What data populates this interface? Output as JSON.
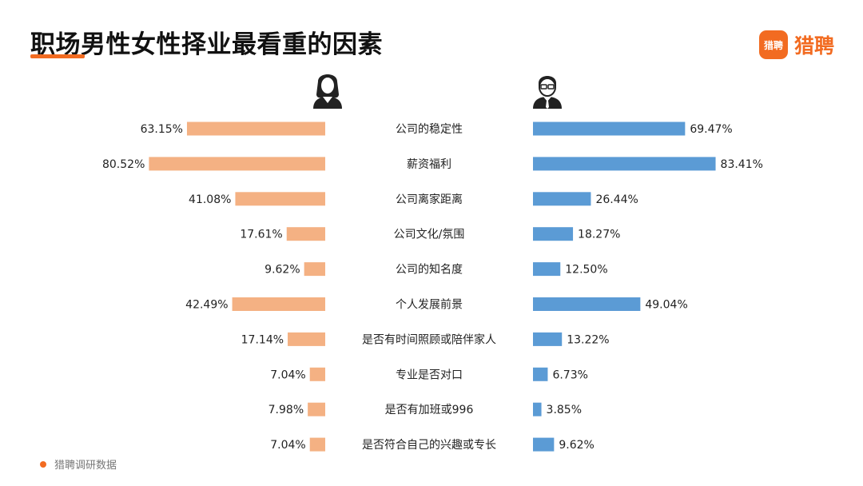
{
  "header": {
    "title": "职场男性女性择业最看重的因素",
    "brand": "猎聘",
    "brand_mark": "猎聘"
  },
  "footer": {
    "source": "猎聘调研数据"
  },
  "colors": {
    "female": "#f4b183",
    "male": "#5b9bd5",
    "accent": "#f26b21"
  },
  "icons": {
    "female": "woman-icon",
    "male": "man-icon"
  },
  "chart_data": {
    "type": "bar",
    "orientation": "horizontal-butterfly",
    "categories": [
      "公司的稳定性",
      "薪资福利",
      "公司离家距离",
      "公司文化/氛围",
      "公司的知名度",
      "个人发展前景",
      "是否有时间照顾或陪伴家人",
      "专业是否对口",
      "是否有加班或996",
      "是否符合自己的兴趣或专长"
    ],
    "series": [
      {
        "values": [
          63.15,
          80.52,
          41.08,
          17.61,
          9.62,
          42.49,
          17.14,
          7.04,
          7.98,
          7.04
        ],
        "labels": [
          "63.15%",
          "80.52%",
          "41.08%",
          "17.61%",
          "9.62%",
          "42.49%",
          "17.14%",
          "7.04%",
          "7.98%",
          "7.04%"
        ]
      },
      {
        "values": [
          69.47,
          83.41,
          26.44,
          18.27,
          12.5,
          49.04,
          13.22,
          6.73,
          3.85,
          9.62
        ],
        "labels": [
          "69.47%",
          "83.41%",
          "26.44%",
          "18.27%",
          "12.50%",
          "49.04%",
          "13.22%",
          "6.73%",
          "3.85%",
          "9.62%"
        ]
      }
    ],
    "unit": "%",
    "xlim": [
      0,
      100
    ],
    "grid": false
  }
}
